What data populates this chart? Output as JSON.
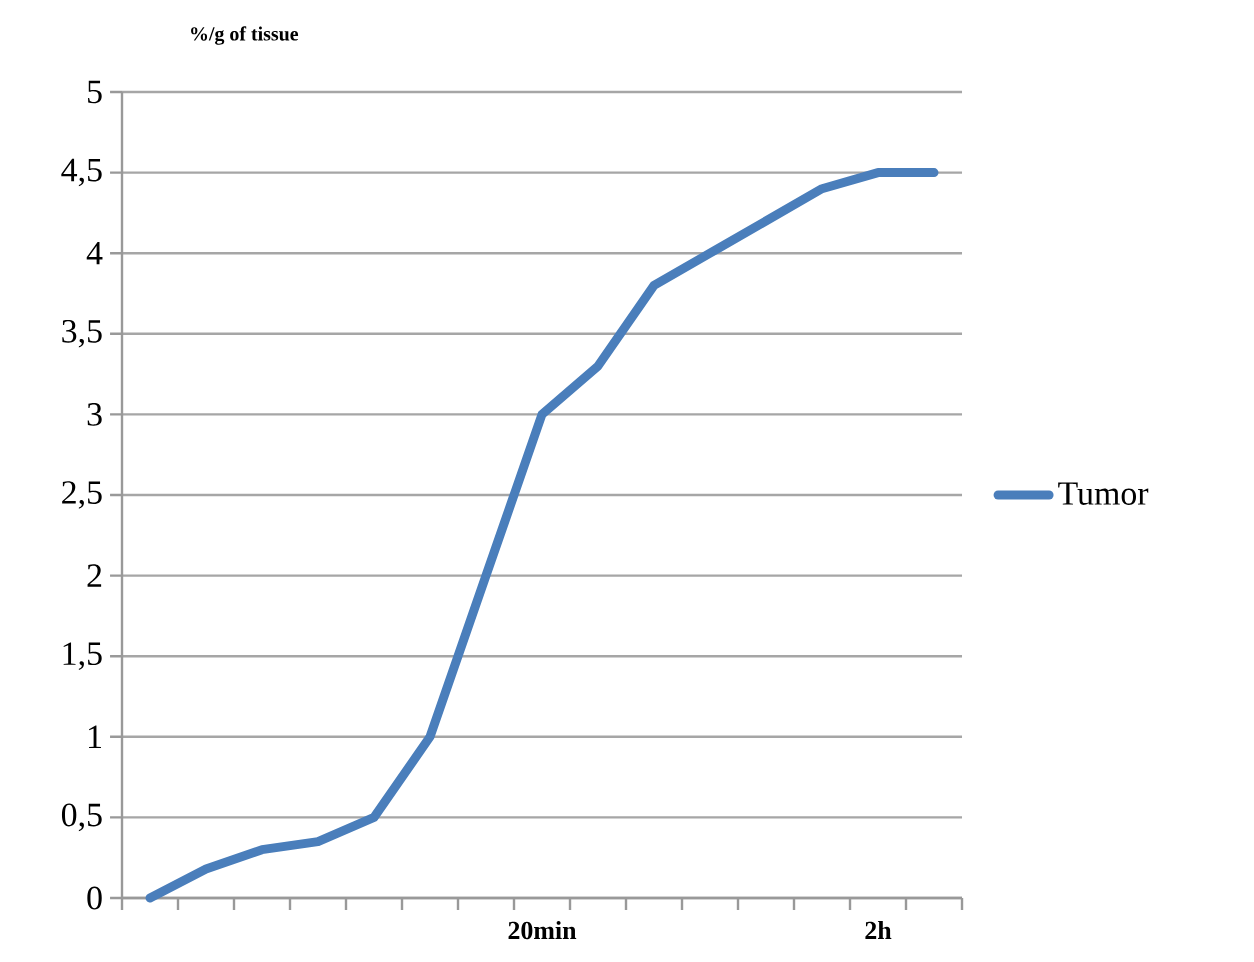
{
  "chart_data": {
    "type": "line",
    "ylabel": "%/g of tissue",
    "categories": [
      null,
      null,
      null,
      null,
      null,
      null,
      null,
      "20min",
      null,
      null,
      null,
      null,
      null,
      "2h",
      null
    ],
    "series": [
      {
        "name": "Tumor",
        "color": "#4a7ebb",
        "values": [
          0,
          0.18,
          0.3,
          0.35,
          0.5,
          1.0,
          2.0,
          3.0,
          3.3,
          3.8,
          4.0,
          4.2,
          4.4,
          4.5,
          4.5
        ]
      }
    ],
    "ylim": [
      0,
      5
    ],
    "yticks": [
      0,
      {
        "value": 0.5,
        "label": "0,5"
      },
      1,
      {
        "value": 1.5,
        "label": "1,5"
      },
      2,
      {
        "value": 2.5,
        "label": "2,5"
      },
      3,
      {
        "value": 3.5,
        "label": "3,5"
      },
      4,
      {
        "value": 4.5,
        "label": "4,5"
      },
      5
    ],
    "grid": "y",
    "legend": "right",
    "line_style": "solid"
  }
}
